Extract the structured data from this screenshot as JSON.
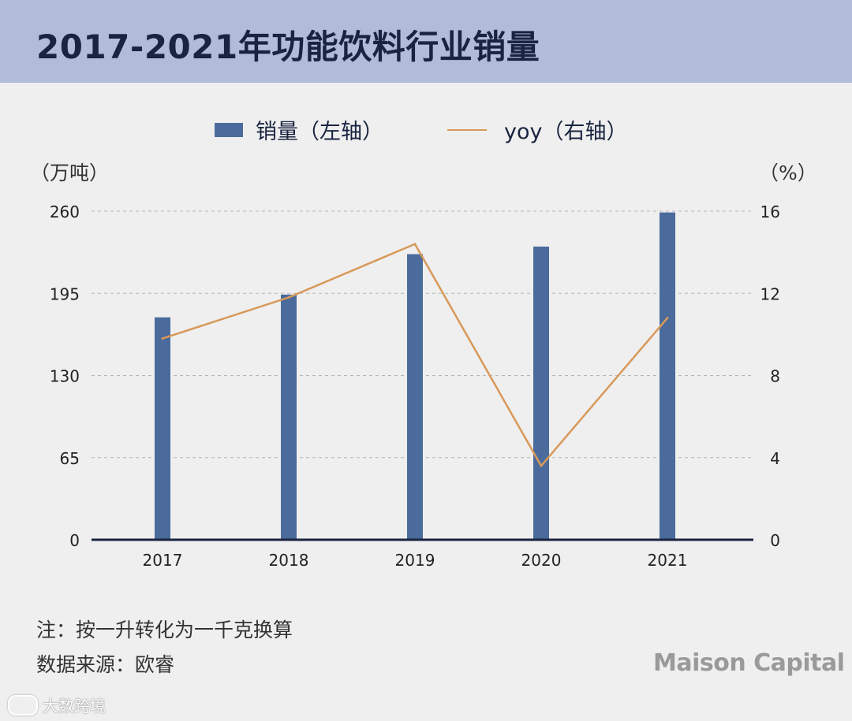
{
  "header": {
    "title": "2017-2021年功能饮料行业销量"
  },
  "legend": {
    "bar_label": "销量（左轴）",
    "line_label": "yoy（右轴）"
  },
  "notes": {
    "note": "注：按一升转化为一千克换算",
    "source": "数据来源：欧睿"
  },
  "brand": "Maison Capital",
  "watermark": "大数跨境",
  "colors": {
    "bar": "#4a6b9c",
    "line": "#d8995a",
    "axis": "#1a2440",
    "grid": "#b5b5b5"
  },
  "chart_data": {
    "type": "bar",
    "categories": [
      "2017",
      "2018",
      "2019",
      "2020",
      "2021"
    ],
    "series": [
      {
        "name": "销量（左轴）",
        "axis": "left",
        "type": "bar",
        "values": [
          176,
          194,
          226,
          232,
          259
        ]
      },
      {
        "name": "yoy（右轴）",
        "axis": "right",
        "type": "line",
        "values": [
          9.8,
          11.8,
          14.4,
          3.6,
          10.8
        ]
      }
    ],
    "y_left": {
      "label": "（万吨）",
      "ticks": [
        0,
        65,
        130,
        195,
        260
      ],
      "range": [
        0,
        260
      ]
    },
    "y_right": {
      "label": "（%）",
      "ticks": [
        0,
        4,
        8,
        12,
        16
      ],
      "range": [
        0,
        16
      ]
    },
    "grid": "horizontal-dashed",
    "legend_position": "top-center"
  }
}
